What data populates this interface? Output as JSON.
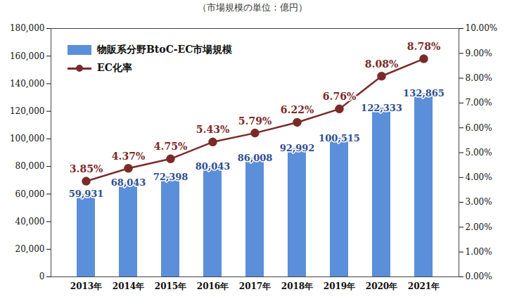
{
  "chart_data": {
    "type": "bar",
    "subtitle": "（市場規模の単位：億円）",
    "categories": [
      "2013年",
      "2014年",
      "2015年",
      "2016年",
      "2017年",
      "2018年",
      "2019年",
      "2020年",
      "2021年"
    ],
    "series": [
      {
        "name": "物販系分野BtoC-EC市場規模",
        "type": "bar",
        "color": "#5b8fd9",
        "values": [
          59931,
          68043,
          72398,
          80043,
          86008,
          92992,
          100515,
          122333,
          132865
        ],
        "value_labels": [
          "59,931",
          "68,043",
          "72,398",
          "80,043",
          "86,008",
          "92,992",
          "100,515",
          "122,333",
          "132,865"
        ]
      },
      {
        "name": "EC化率",
        "type": "line",
        "axis": "y2",
        "color": "#7b2a2a",
        "marker": "circle",
        "values": [
          3.85,
          4.37,
          4.75,
          5.43,
          5.79,
          6.22,
          6.76,
          8.08,
          8.78
        ],
        "value_labels": [
          "3.85%",
          "4.37%",
          "4.75%",
          "5.43%",
          "5.79%",
          "6.22%",
          "6.76%",
          "8.08%",
          "8.78%"
        ]
      }
    ],
    "ylim": [
      0,
      180000
    ],
    "yticks": [
      0,
      {
        "value": 20000,
        "label": "20,000"
      },
      {
        "value": 40000,
        "label": "40,000"
      },
      {
        "value": 60000,
        "label": "60,000"
      },
      {
        "value": 80000,
        "label": "80,000"
      },
      {
        "value": 100000,
        "label": "100,000"
      },
      {
        "value": 120000,
        "label": "120,000"
      },
      {
        "value": 140000,
        "label": "140,000"
      },
      {
        "value": 160000,
        "label": "160,000"
      },
      {
        "value": 180000,
        "label": "180,000"
      }
    ],
    "y2lim": [
      0,
      10
    ],
    "y2ticks": [
      {
        "value": 0,
        "label": "0.00%"
      },
      {
        "value": 1,
        "label": "1.00%"
      },
      {
        "value": 2,
        "label": "2.00%"
      },
      {
        "value": 3,
        "label": "3.00%"
      },
      {
        "value": 4,
        "label": "4.00%"
      },
      {
        "value": 5,
        "label": "5.00%"
      },
      {
        "value": 6,
        "label": "6.00%"
      },
      {
        "value": 7,
        "label": "7.00%"
      },
      {
        "value": 8,
        "label": "8.00%"
      },
      {
        "value": 9,
        "label": "9.00%"
      },
      {
        "value": 10,
        "label": "10.00%"
      }
    ],
    "data_labels": true,
    "legend": "top-left",
    "grid": false
  }
}
